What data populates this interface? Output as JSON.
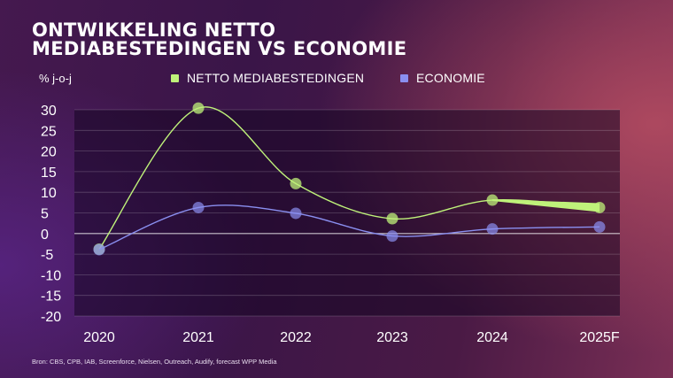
{
  "chart_data": {
    "type": "line",
    "title_lines": [
      "ONTWIKKELING NETTO",
      "MEDIABESTEDINGEN VS ECONOMIE"
    ],
    "ylabel": "% j-o-j",
    "categories": [
      "2020",
      "2021",
      "2022",
      "2023",
      "2024",
      "2025F"
    ],
    "ylim": [
      -20,
      30
    ],
    "yticks": [
      30,
      25,
      20,
      15,
      10,
      5,
      0,
      -5,
      -10,
      -15,
      -20
    ],
    "series": [
      {
        "name": "NETTO MEDIABESTEDINGEN",
        "color": "#bff27a",
        "values": [
          -3.8,
          30.4,
          12.1,
          3.6,
          8.1,
          6.3
        ]
      },
      {
        "name": "ECONOMIE",
        "color": "#8a8ff0",
        "values": [
          -3.9,
          6.3,
          4.9,
          -0.6,
          1.1,
          1.6
        ]
      }
    ],
    "legend_position": "top",
    "source": "Bron: CBS, CPB, IAB, Screenforce, Nielsen, Outreach, Audify, forecast WPP Media"
  }
}
